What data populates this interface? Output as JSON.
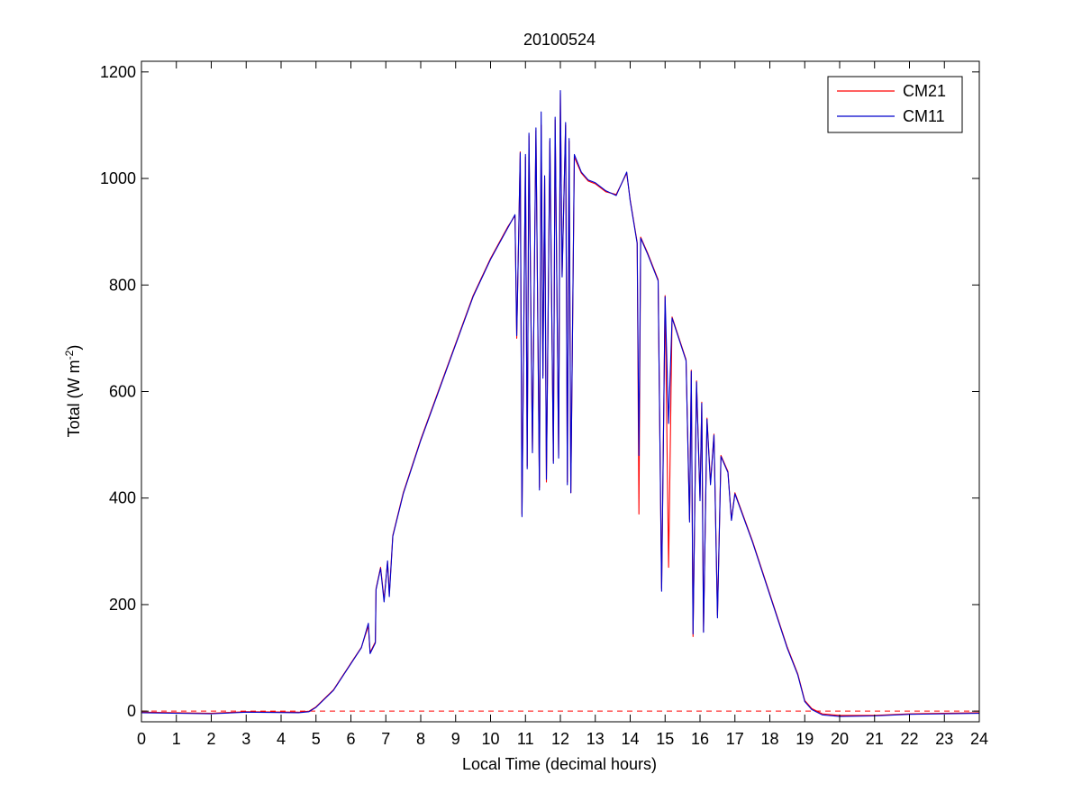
{
  "chart_data": {
    "type": "line",
    "title": "20100524",
    "xlabel": "Local Time (decimal hours)",
    "ylabel": {
      "main": "Total (W m",
      "sup": "-2",
      "close": ")"
    },
    "xlim": [
      0,
      24
    ],
    "ylim": [
      -20,
      1220
    ],
    "xticks": [
      0,
      1,
      2,
      3,
      4,
      5,
      6,
      7,
      8,
      9,
      10,
      11,
      12,
      13,
      14,
      15,
      16,
      17,
      18,
      19,
      20,
      21,
      22,
      23,
      24
    ],
    "yticks": [
      0,
      200,
      400,
      600,
      800,
      1000,
      1200
    ],
    "grid": false,
    "legend": {
      "position": "top-right",
      "entries": [
        "CM21",
        "CM11"
      ]
    },
    "zero_line": {
      "y": 0,
      "style": "dashed",
      "color": "#ff0000"
    },
    "series": [
      {
        "name": "CM21",
        "color": "#ff0000",
        "points": [
          [
            0,
            -2
          ],
          [
            2,
            -4
          ],
          [
            3,
            -1
          ],
          [
            4.5,
            -2
          ],
          [
            4.8,
            0
          ],
          [
            5.0,
            8
          ],
          [
            5.5,
            40
          ],
          [
            6.0,
            90
          ],
          [
            6.3,
            120
          ],
          [
            6.5,
            160
          ],
          [
            6.55,
            110
          ],
          [
            6.7,
            130
          ],
          [
            6.72,
            230
          ],
          [
            6.85,
            270
          ],
          [
            6.95,
            210
          ],
          [
            7.05,
            280
          ],
          [
            7.1,
            220
          ],
          [
            7.2,
            330
          ],
          [
            7.5,
            410
          ],
          [
            8.0,
            510
          ],
          [
            8.5,
            600
          ],
          [
            9.0,
            690
          ],
          [
            9.5,
            780
          ],
          [
            10.0,
            850
          ],
          [
            10.5,
            910
          ],
          [
            10.7,
            930
          ],
          [
            10.75,
            700
          ],
          [
            10.85,
            1050
          ],
          [
            10.9,
            370
          ],
          [
            11.0,
            1040
          ],
          [
            11.05,
            460
          ],
          [
            11.1,
            1080
          ],
          [
            11.2,
            490
          ],
          [
            11.3,
            1090
          ],
          [
            11.4,
            420
          ],
          [
            11.45,
            1100
          ],
          [
            11.5,
            630
          ],
          [
            11.55,
            1000
          ],
          [
            11.6,
            430
          ],
          [
            11.7,
            1070
          ],
          [
            11.8,
            470
          ],
          [
            11.85,
            1110
          ],
          [
            11.95,
            480
          ],
          [
            12.0,
            1160
          ],
          [
            12.05,
            820
          ],
          [
            12.15,
            1100
          ],
          [
            12.2,
            430
          ],
          [
            12.25,
            1070
          ],
          [
            12.3,
            410
          ],
          [
            12.4,
            1040
          ],
          [
            12.6,
            1010
          ],
          [
            12.8,
            995
          ],
          [
            13.0,
            990
          ],
          [
            13.3,
            975
          ],
          [
            13.6,
            970
          ],
          [
            13.9,
            1010
          ],
          [
            14.0,
            960
          ],
          [
            14.1,
            920
          ],
          [
            14.2,
            880
          ],
          [
            14.25,
            370
          ],
          [
            14.3,
            890
          ],
          [
            14.5,
            860
          ],
          [
            14.8,
            810
          ],
          [
            14.9,
            230
          ],
          [
            15.0,
            780
          ],
          [
            15.1,
            270
          ],
          [
            15.2,
            740
          ],
          [
            15.4,
            700
          ],
          [
            15.6,
            660
          ],
          [
            15.7,
            360
          ],
          [
            15.75,
            640
          ],
          [
            15.8,
            140
          ],
          [
            15.9,
            620
          ],
          [
            16.0,
            400
          ],
          [
            16.05,
            580
          ],
          [
            16.1,
            150
          ],
          [
            16.2,
            550
          ],
          [
            16.3,
            430
          ],
          [
            16.4,
            520
          ],
          [
            16.5,
            180
          ],
          [
            16.6,
            480
          ],
          [
            16.8,
            450
          ],
          [
            16.9,
            360
          ],
          [
            17.0,
            410
          ],
          [
            17.5,
            320
          ],
          [
            18.0,
            220
          ],
          [
            18.5,
            120
          ],
          [
            18.8,
            70
          ],
          [
            19.0,
            20
          ],
          [
            19.2,
            5
          ],
          [
            19.5,
            -5
          ],
          [
            20.0,
            -8
          ],
          [
            21.0,
            -8
          ],
          [
            22.0,
            -5
          ],
          [
            24,
            -3
          ]
        ]
      },
      {
        "name": "CM11",
        "color": "#0000cc",
        "points": [
          [
            0,
            -3
          ],
          [
            2,
            -5
          ],
          [
            3,
            -2
          ],
          [
            4.5,
            -3
          ],
          [
            4.8,
            -1
          ],
          [
            5.0,
            7
          ],
          [
            5.5,
            39
          ],
          [
            6.0,
            89
          ],
          [
            6.3,
            119
          ],
          [
            6.5,
            165
          ],
          [
            6.55,
            108
          ],
          [
            6.7,
            128
          ],
          [
            6.72,
            228
          ],
          [
            6.85,
            268
          ],
          [
            6.95,
            205
          ],
          [
            7.05,
            282
          ],
          [
            7.1,
            215
          ],
          [
            7.2,
            328
          ],
          [
            7.5,
            408
          ],
          [
            8.0,
            508
          ],
          [
            8.5,
            598
          ],
          [
            9.0,
            688
          ],
          [
            9.5,
            778
          ],
          [
            10.0,
            848
          ],
          [
            10.5,
            908
          ],
          [
            10.7,
            932
          ],
          [
            10.75,
            705
          ],
          [
            10.85,
            1048
          ],
          [
            10.9,
            365
          ],
          [
            11.0,
            1045
          ],
          [
            11.05,
            455
          ],
          [
            11.1,
            1085
          ],
          [
            11.2,
            485
          ],
          [
            11.3,
            1095
          ],
          [
            11.4,
            415
          ],
          [
            11.45,
            1125
          ],
          [
            11.5,
            625
          ],
          [
            11.55,
            1005
          ],
          [
            11.6,
            435
          ],
          [
            11.7,
            1075
          ],
          [
            11.8,
            465
          ],
          [
            11.85,
            1115
          ],
          [
            11.95,
            475
          ],
          [
            12.0,
            1165
          ],
          [
            12.05,
            815
          ],
          [
            12.15,
            1105
          ],
          [
            12.2,
            425
          ],
          [
            12.25,
            1075
          ],
          [
            12.3,
            410
          ],
          [
            12.4,
            1045
          ],
          [
            12.6,
            1012
          ],
          [
            12.8,
            997
          ],
          [
            13.0,
            992
          ],
          [
            13.3,
            977
          ],
          [
            13.6,
            968
          ],
          [
            13.9,
            1012
          ],
          [
            14.0,
            958
          ],
          [
            14.1,
            918
          ],
          [
            14.2,
            878
          ],
          [
            14.25,
            480
          ],
          [
            14.3,
            888
          ],
          [
            14.5,
            858
          ],
          [
            14.8,
            808
          ],
          [
            14.9,
            225
          ],
          [
            15.0,
            778
          ],
          [
            15.1,
            540
          ],
          [
            15.2,
            738
          ],
          [
            15.4,
            698
          ],
          [
            15.6,
            658
          ],
          [
            15.7,
            355
          ],
          [
            15.75,
            638
          ],
          [
            15.8,
            145
          ],
          [
            15.9,
            618
          ],
          [
            16.0,
            395
          ],
          [
            16.05,
            578
          ],
          [
            16.1,
            148
          ],
          [
            16.2,
            548
          ],
          [
            16.3,
            425
          ],
          [
            16.4,
            518
          ],
          [
            16.5,
            175
          ],
          [
            16.6,
            478
          ],
          [
            16.8,
            448
          ],
          [
            16.9,
            358
          ],
          [
            17.0,
            408
          ],
          [
            17.5,
            318
          ],
          [
            18.0,
            218
          ],
          [
            18.5,
            118
          ],
          [
            18.8,
            68
          ],
          [
            19.0,
            18
          ],
          [
            19.2,
            3
          ],
          [
            19.5,
            -7
          ],
          [
            20.0,
            -10
          ],
          [
            21.0,
            -9
          ],
          [
            22.0,
            -6
          ],
          [
            24,
            -4
          ]
        ]
      }
    ]
  }
}
